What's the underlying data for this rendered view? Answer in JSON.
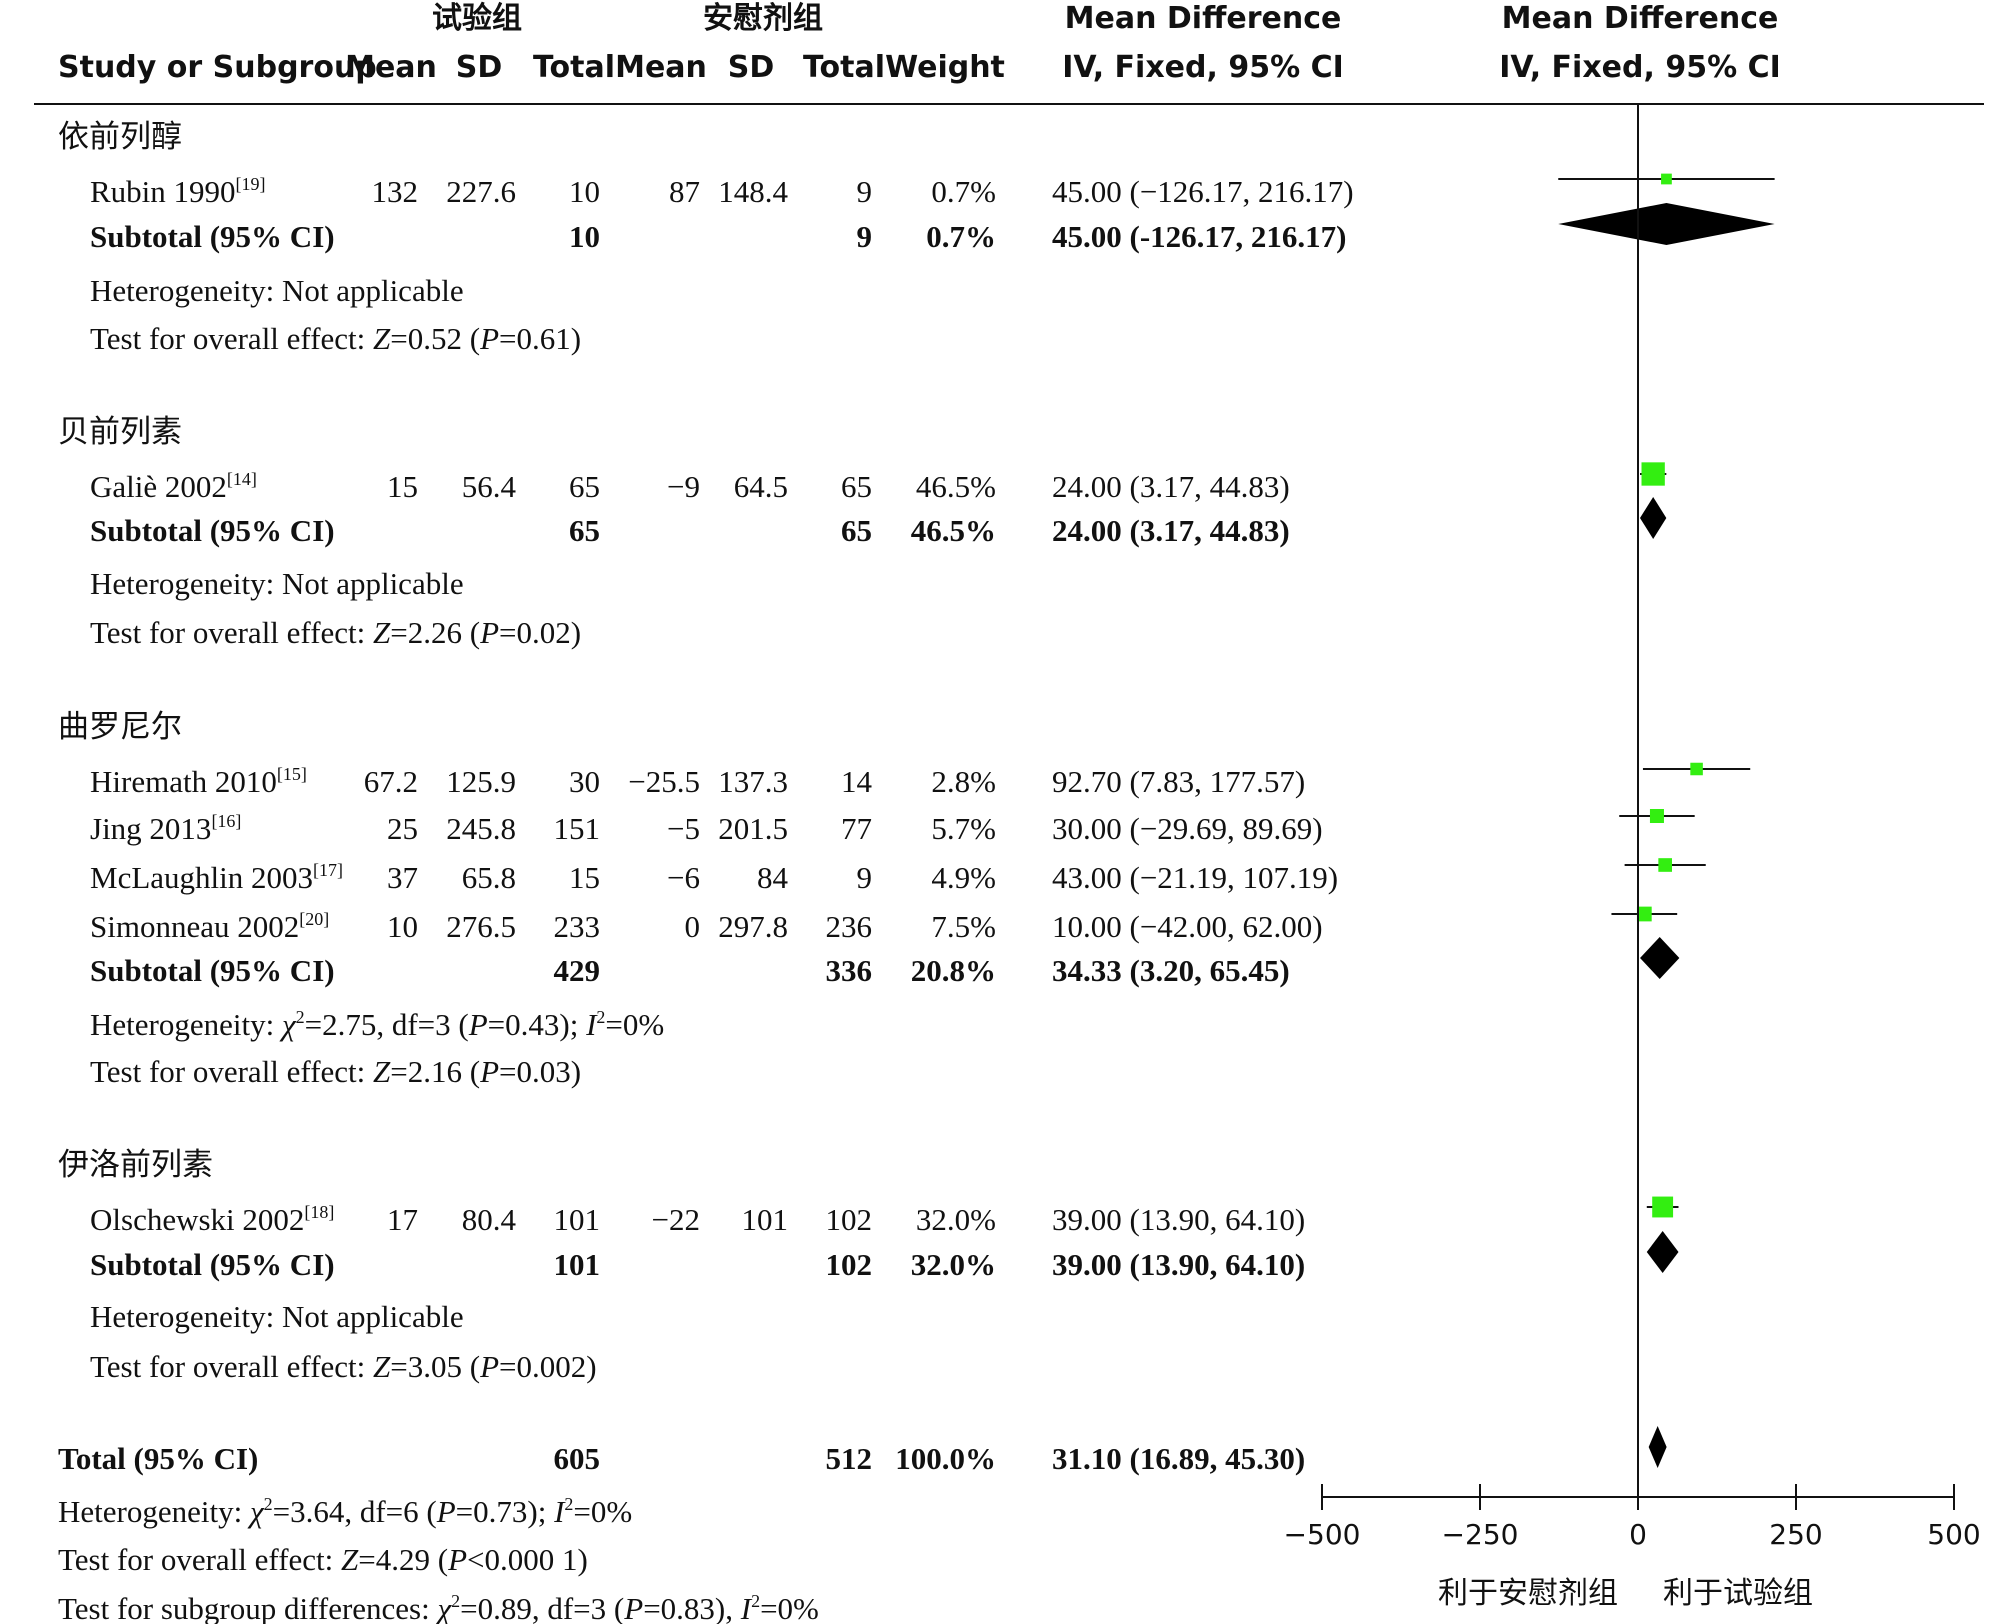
{
  "header": {
    "exp_group": "试验组",
    "ctrl_group": "安慰剂组",
    "col_study": "Study or Subgroup",
    "col_mean": "Mean",
    "col_sd": "SD",
    "col_total": "Total",
    "col_weight": "Weight",
    "col_md_title": "Mean Difference",
    "col_md_method": "IV, Fixed, 95% CI",
    "plot_title": "Mean Difference",
    "plot_method": "IV, Fixed, 95% CI"
  },
  "groups": [
    {
      "name": "依前列醇",
      "studies": [
        {
          "study": "Rubin 1990",
          "ref": "[19]",
          "e_mean": "132",
          "e_sd": "227.6",
          "e_total": "10",
          "c_mean": "87",
          "c_sd": "148.4",
          "c_total": "9",
          "weight": "0.7%",
          "ci_text": "45.00 (−126.17, 216.17)",
          "md": 45.0,
          "lo": -126.17,
          "hi": 216.17,
          "w": 0.7
        }
      ],
      "subtotal": {
        "label": "Subtotal (95% CI)",
        "e_total": "10",
        "c_total": "9",
        "weight": "0.7%",
        "ci_text": "45.00 (-126.17, 216.17)",
        "md": 45.0,
        "lo": -126.17,
        "hi": 216.17
      },
      "heterogeneity": "Heterogeneity: Not applicable",
      "overall": {
        "prefix": "Test for overall effect: ",
        "z": "Z",
        "zval": "=0.52 (",
        "p": "P",
        "pval": "=0.61)"
      }
    },
    {
      "name": "贝前列素",
      "studies": [
        {
          "study": "Galiè 2002",
          "ref": "[14]",
          "e_mean": "15",
          "e_sd": "56.4",
          "e_total": "65",
          "c_mean": "−9",
          "c_sd": "64.5",
          "c_total": "65",
          "weight": "46.5%",
          "ci_text": "24.00 (3.17, 44.83)",
          "md": 24.0,
          "lo": 3.17,
          "hi": 44.83,
          "w": 46.5
        }
      ],
      "subtotal": {
        "label": "Subtotal (95% CI)",
        "e_total": "65",
        "c_total": "65",
        "weight": "46.5%",
        "ci_text": "24.00 (3.17, 44.83)",
        "md": 24.0,
        "lo": 3.17,
        "hi": 44.83
      },
      "heterogeneity": "Heterogeneity: Not applicable",
      "overall": {
        "prefix": "Test for overall effect: ",
        "z": "Z",
        "zval": "=2.26 (",
        "p": "P",
        "pval": "=0.02)"
      }
    },
    {
      "name": "曲罗尼尔",
      "studies": [
        {
          "study": "Hiremath 2010",
          "ref": "[15]",
          "e_mean": "67.2",
          "e_sd": "125.9",
          "e_total": "30",
          "c_mean": "−25.5",
          "c_sd": "137.3",
          "c_total": "14",
          "weight": "2.8%",
          "ci_text": "92.70 (7.83, 177.57)",
          "md": 92.7,
          "lo": 7.83,
          "hi": 177.57,
          "w": 2.8
        },
        {
          "study": "Jing 2013",
          "ref": "[16]",
          "e_mean": "25",
          "e_sd": "245.8",
          "e_total": "151",
          "c_mean": "−5",
          "c_sd": "201.5",
          "c_total": "77",
          "weight": "5.7%",
          "ci_text": "30.00 (−29.69, 89.69)",
          "md": 30.0,
          "lo": -29.69,
          "hi": 89.69,
          "w": 5.7
        },
        {
          "study": "McLaughlin 2003",
          "ref": "[17]",
          "e_mean": "37",
          "e_sd": "65.8",
          "e_total": "15",
          "c_mean": "−6",
          "c_sd": "84",
          "c_total": "9",
          "weight": "4.9%",
          "ci_text": "43.00 (−21.19, 107.19)",
          "md": 43.0,
          "lo": -21.19,
          "hi": 107.19,
          "w": 4.9
        },
        {
          "study": "Simonneau 2002",
          "ref": "[20]",
          "e_mean": "10",
          "e_sd": "276.5",
          "e_total": "233",
          "c_mean": "0",
          "c_sd": "297.8",
          "c_total": "236",
          "weight": "7.5%",
          "ci_text": "10.00 (−42.00, 62.00)",
          "md": 10.0,
          "lo": -42.0,
          "hi": 62.0,
          "w": 7.5
        }
      ],
      "subtotal": {
        "label": "Subtotal (95% CI)",
        "e_total": "429",
        "c_total": "336",
        "weight": "20.8%",
        "ci_text": "34.33 (3.20, 65.45)",
        "md": 34.33,
        "lo": 3.2,
        "hi": 65.45
      },
      "heterogeneity_parts": {
        "a": "Heterogeneity: ",
        "chi": "χ",
        "b": "=2.75, df=3 (",
        "p": "P",
        "c": "=0.43); ",
        "i": "I",
        "d": "=0%"
      },
      "overall": {
        "prefix": "Test for overall effect: ",
        "z": "Z",
        "zval": "=2.16 (",
        "p": "P",
        "pval": "=0.03)"
      }
    },
    {
      "name": "伊洛前列素",
      "studies": [
        {
          "study": "Olschewski 2002",
          "ref": "[18]",
          "e_mean": "17",
          "e_sd": "80.4",
          "e_total": "101",
          "c_mean": "−22",
          "c_sd": "101",
          "c_total": "102",
          "weight": "32.0%",
          "ci_text": "39.00 (13.90, 64.10)",
          "md": 39.0,
          "lo": 13.9,
          "hi": 64.1,
          "w": 32.0
        }
      ],
      "subtotal": {
        "label": "Subtotal (95% CI)",
        "e_total": "101",
        "c_total": "102",
        "weight": "32.0%",
        "ci_text": "39.00 (13.90, 64.10)",
        "md": 39.0,
        "lo": 13.9,
        "hi": 64.1
      },
      "heterogeneity": "Heterogeneity: Not applicable",
      "overall": {
        "prefix": "Test for overall effect: ",
        "z": "Z",
        "zval": "=3.05 (",
        "p": "P",
        "pval": "=0.002)"
      }
    }
  ],
  "total": {
    "label": "Total (95% CI)",
    "e_total": "605",
    "c_total": "512",
    "weight": "100.0%",
    "ci_text": "31.10 (16.89, 45.30)",
    "md": 31.1,
    "lo": 16.89,
    "hi": 45.3,
    "heterogeneity_parts": {
      "a": "Heterogeneity: ",
      "chi": "χ",
      "b": "=3.64, df=6 (",
      "p": "P",
      "c": "=0.73); ",
      "i": "I",
      "d": "=0%"
    },
    "overall": {
      "prefix": "Test for overall effect: ",
      "z": "Z",
      "zval": "=4.29 (",
      "p": "P",
      "pval": "<0.000 1)"
    },
    "subgroup_parts": {
      "a": "Test for subgroup differences: ",
      "chi": "χ",
      "b": "=0.89, df=3 (",
      "p": "P",
      "c": "=0.83), ",
      "i": "I",
      "d": "=0%"
    }
  },
  "chart_data": {
    "type": "forest",
    "xlim": [
      -500,
      500
    ],
    "xticks": [
      "−500",
      "−250",
      "0",
      "250",
      "500"
    ],
    "xtick_values": [
      -500,
      -250,
      0,
      250,
      500
    ],
    "favours_left": "利于安慰剂组",
    "favours_right": "利于试验组",
    "study_marker_color": "#33ee11",
    "summary_color": "#000000"
  }
}
